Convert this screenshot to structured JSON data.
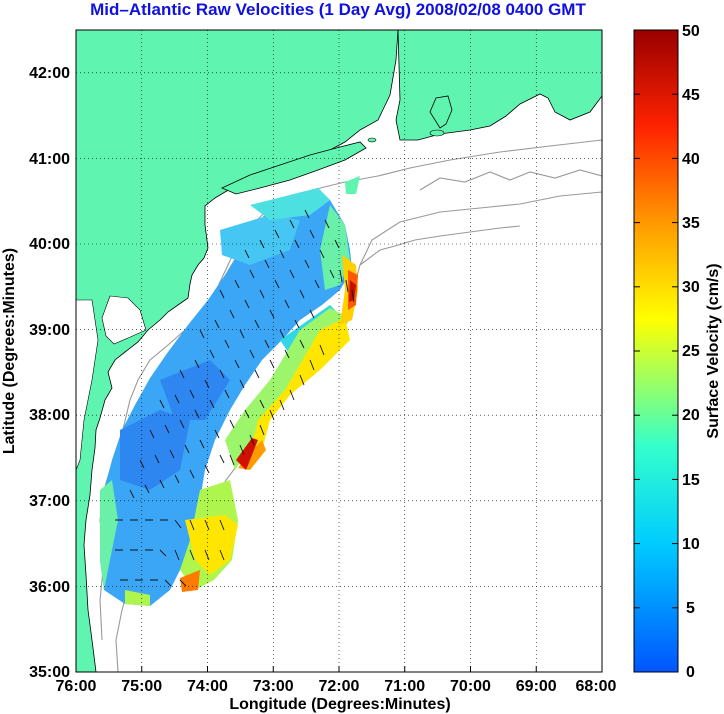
{
  "title": "Mid–Atlantic Raw Velocities (1 Day Avg) 2008/02/08 0400 GMT",
  "x_axis": {
    "label": "Longitude (Degrees:Minutes)",
    "ticks": [
      "76:00",
      "75:00",
      "74:00",
      "73:00",
      "72:00",
      "71:00",
      "70:00",
      "69:00",
      "68:00"
    ]
  },
  "y_axis": {
    "label": "Latitude (Degrees:Minutes)",
    "ticks": [
      "42:00",
      "41:00",
      "40:00",
      "39:00",
      "38:00",
      "37:00",
      "36:00",
      "35:00"
    ]
  },
  "colorbar": {
    "label": "Surface Velocity (cm/s)",
    "ticks": [
      "50",
      "45",
      "40",
      "35",
      "30",
      "25",
      "20",
      "15",
      "10",
      "5",
      "0"
    ],
    "range": [
      0,
      50
    ],
    "colormap": "jet"
  },
  "colors": {
    "land": "#5ff5b0",
    "title": "#1010e0",
    "coast_contour": "#999999",
    "grid": "#000000"
  },
  "map_extent": {
    "lon": [
      -76,
      -68
    ],
    "lat": [
      35,
      42.5
    ]
  }
}
